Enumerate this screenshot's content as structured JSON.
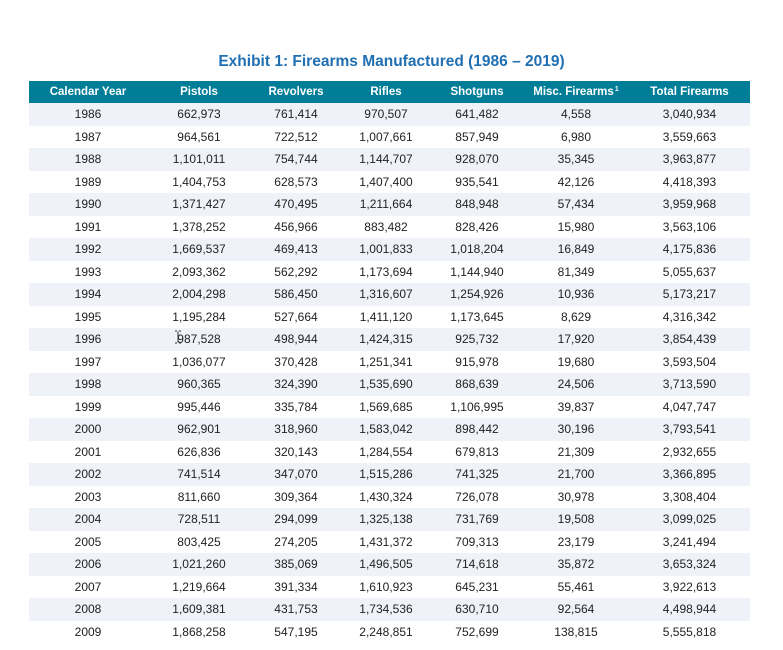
{
  "title": "Exhibit 1: Firearms Manufactured (1986 – 2019)",
  "columns": [
    "Calendar Year",
    "Pistols",
    "Revolvers",
    "Rifles",
    "Shotguns",
    "Misc. Firearms",
    "Total Firearms"
  ],
  "footnote_marker": "1",
  "rows": [
    [
      "1986",
      "662,973",
      "761,414",
      "970,507",
      "641,482",
      "4,558",
      "3,040,934"
    ],
    [
      "1987",
      "964,561",
      "722,512",
      "1,007,661",
      "857,949",
      "6,980",
      "3,559,663"
    ],
    [
      "1988",
      "1,101,011",
      "754,744",
      "1,144,707",
      "928,070",
      "35,345",
      "3,963,877"
    ],
    [
      "1989",
      "1,404,753",
      "628,573",
      "1,407,400",
      "935,541",
      "42,126",
      "4,418,393"
    ],
    [
      "1990",
      "1,371,427",
      "470,495",
      "1,211,664",
      "848,948",
      "57,434",
      "3,959,968"
    ],
    [
      "1991",
      "1,378,252",
      "456,966",
      "883,482",
      "828,426",
      "15,980",
      "3,563,106"
    ],
    [
      "1992",
      "1,669,537",
      "469,413",
      "1,001,833",
      "1,018,204",
      "16,849",
      "4,175,836"
    ],
    [
      "1993",
      "2,093,362",
      "562,292",
      "1,173,694",
      "1,144,940",
      "81,349",
      "5,055,637"
    ],
    [
      "1994",
      "2,004,298",
      "586,450",
      "1,316,607",
      "1,254,926",
      "10,936",
      "5,173,217"
    ],
    [
      "1995",
      "1,195,284",
      "527,664",
      "1,411,120",
      "1,173,645",
      "8,629",
      "4,316,342"
    ],
    [
      "1996",
      "987,528",
      "498,944",
      "1,424,315",
      "925,732",
      "17,920",
      "3,854,439"
    ],
    [
      "1997",
      "1,036,077",
      "370,428",
      "1,251,341",
      "915,978",
      "19,680",
      "3,593,504"
    ],
    [
      "1998",
      "960,365",
      "324,390",
      "1,535,690",
      "868,639",
      "24,506",
      "3,713,590"
    ],
    [
      "1999",
      "995,446",
      "335,784",
      "1,569,685",
      "1,106,995",
      "39,837",
      "4,047,747"
    ],
    [
      "2000",
      "962,901",
      "318,960",
      "1,583,042",
      "898,442",
      "30,196",
      "3,793,541"
    ],
    [
      "2001",
      "626,836",
      "320,143",
      "1,284,554",
      "679,813",
      "21,309",
      "2,932,655"
    ],
    [
      "2002",
      "741,514",
      "347,070",
      "1,515,286",
      "741,325",
      "21,700",
      "3,366,895"
    ],
    [
      "2003",
      "811,660",
      "309,364",
      "1,430,324",
      "726,078",
      "30,978",
      "3,308,404"
    ],
    [
      "2004",
      "728,511",
      "294,099",
      "1,325,138",
      "731,769",
      "19,508",
      "3,099,025"
    ],
    [
      "2005",
      "803,425",
      "274,205",
      "1,431,372",
      "709,313",
      "23,179",
      "3,241,494"
    ],
    [
      "2006",
      "1,021,260",
      "385,069",
      "1,496,505",
      "714,618",
      "35,872",
      "3,653,324"
    ],
    [
      "2007",
      "1,219,664",
      "391,334",
      "1,610,923",
      "645,231",
      "55,461",
      "3,922,613"
    ],
    [
      "2008",
      "1,609,381",
      "431,753",
      "1,734,536",
      "630,710",
      "92,564",
      "4,498,944"
    ],
    [
      "2009",
      "1,868,258",
      "547,195",
      "2,248,851",
      "752,699",
      "138,815",
      "5,555,818"
    ]
  ]
}
